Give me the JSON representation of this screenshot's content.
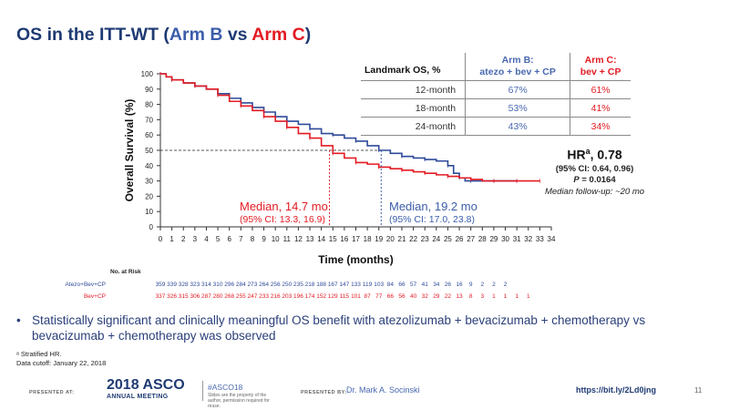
{
  "title": {
    "prefix": "OS in the ITT-WT (",
    "arm_b": "Arm B",
    "vs": " vs ",
    "arm_c": "Arm C",
    "suffix": ")"
  },
  "landmark": {
    "header_label": "Landmark OS, %",
    "arm_b_header": [
      "Arm B:",
      "atezo + bev + CP"
    ],
    "arm_c_header": [
      "Arm C:",
      "bev + CP"
    ],
    "rows": [
      {
        "label": "12-month",
        "b": "67%",
        "c": "61%"
      },
      {
        "label": "18-month",
        "b": "53%",
        "c": "41%"
      },
      {
        "label": "24-month",
        "b": "43%",
        "c": "34%"
      }
    ]
  },
  "hr": {
    "label": "HR",
    "sup": "a",
    "value": ", 0.78",
    "ci": "(95% CI: 0.64, 0.96)",
    "p_label": "P",
    "p_value": " = 0.0164",
    "followup": "Median follow-up: ~20 mo"
  },
  "median_c": {
    "line1": "Median, 14.7 mo",
    "line2": "(95% CI: 13.3, 16.9)"
  },
  "median_b": {
    "line1": "Median, 19.2 mo",
    "line2": "(95% CI: 17.0, 23.8)"
  },
  "risk": {
    "title": "No. at Risk",
    "arm_b_label": "Atezo+Bev+CP",
    "arm_c_label": "Bev+CP",
    "arm_b": [
      "359",
      "339",
      "328",
      "323",
      "314",
      "310",
      "296",
      "284",
      "273",
      "264",
      "256",
      "250",
      "235",
      "218",
      "188",
      "167",
      "147",
      "133",
      "119",
      "103",
      "84",
      "66",
      "57",
      "41",
      "34",
      "26",
      "16",
      "9",
      "2",
      "2",
      "2"
    ],
    "arm_c": [
      "337",
      "326",
      "315",
      "306",
      "287",
      "280",
      "268",
      "255",
      "247",
      "233",
      "216",
      "203",
      "196",
      "174",
      "152",
      "129",
      "115",
      "101",
      "87",
      "77",
      "66",
      "56",
      "40",
      "32",
      "29",
      "22",
      "13",
      "8",
      "3",
      "1",
      "1",
      "1",
      "1"
    ]
  },
  "bullet": "Statistically significant and clinically meaningful OS benefit with atezolizumab + bevacizumab + chemotherapy vs bevacizumab + chemotherapy was observed",
  "footnotes": [
    "ᵃ Stratified HR.",
    "Data cutoff: January 22, 2018"
  ],
  "footer": {
    "presented_at": "PRESENTED AT:",
    "asco_year": "2018 ASCO",
    "asco_sub": "ANNUAL MEETING",
    "hashtag": "#ASCO18",
    "note": "Slides are the property of the author, permission required for reuse.",
    "presented_by": "PRESENTED BY:",
    "presenter": "Dr. Mark A. Socinski",
    "link": "https://bit.ly/2Ld0jng",
    "page": "11"
  },
  "colors": {
    "arm_b": "#2f4a9a",
    "arm_c": "#e31b23",
    "title": "#1f3a73"
  },
  "chart_data": {
    "type": "line",
    "xlabel": "Time (months)",
    "ylabel": "Overall Survival (%)",
    "xlim": [
      0,
      34
    ],
    "ylim": [
      0,
      100
    ],
    "xticks": [
      0,
      1,
      2,
      3,
      4,
      5,
      6,
      7,
      8,
      9,
      10,
      11,
      12,
      13,
      14,
      15,
      16,
      17,
      18,
      19,
      20,
      21,
      22,
      23,
      24,
      25,
      26,
      27,
      28,
      29,
      30,
      31,
      32,
      33,
      34
    ],
    "yticks": [
      0,
      10,
      20,
      30,
      40,
      50,
      60,
      70,
      80,
      90,
      100
    ],
    "reference_y": 50,
    "median_lines": [
      {
        "series": "Arm C",
        "x": 14.7
      },
      {
        "series": "Arm B",
        "x": 19.2
      }
    ],
    "series": [
      {
        "name": "Arm B",
        "color": "#2f4a9a",
        "x": [
          0,
          0.5,
          1,
          2,
          3,
          4,
          5,
          6,
          7,
          8,
          9,
          10,
          11,
          12,
          13,
          14,
          15,
          16,
          17,
          18,
          19,
          20,
          21,
          22,
          23,
          24,
          25,
          25.5,
          26,
          26.5,
          27,
          28,
          29,
          30,
          31
        ],
        "y": [
          100,
          98,
          96,
          94,
          92,
          90,
          87,
          84,
          81,
          78,
          75,
          72,
          69,
          67,
          64,
          61,
          60,
          58,
          56,
          53,
          50,
          48,
          46,
          45,
          44,
          43,
          40,
          35,
          32,
          30,
          30,
          30,
          30,
          30,
          30
        ]
      },
      {
        "name": "Arm C",
        "color": "#e31b23",
        "x": [
          0,
          0.5,
          1,
          2,
          3,
          4,
          5,
          6,
          7,
          8,
          9,
          10,
          11,
          12,
          13,
          14,
          15,
          16,
          17,
          18,
          19,
          20,
          21,
          22,
          23,
          24,
          25,
          26,
          27,
          28,
          29,
          30,
          31,
          32,
          33
        ],
        "y": [
          100,
          98,
          96,
          94,
          92,
          90,
          86,
          82,
          79,
          76,
          72,
          69,
          65,
          61,
          58,
          53,
          48,
          45,
          42,
          41,
          39,
          38,
          37,
          36,
          35,
          34,
          33,
          32,
          31,
          30,
          30,
          30,
          30,
          30,
          30
        ]
      }
    ]
  }
}
